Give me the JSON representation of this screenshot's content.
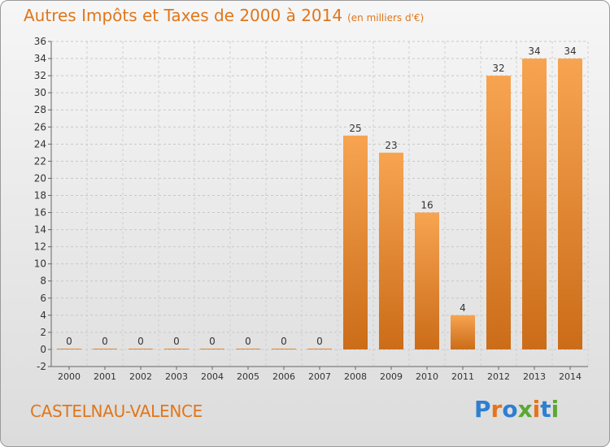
{
  "title": "Autres Impôts et Taxes de 2000 à 2014",
  "subtitle": "(en milliers d'€)",
  "place": "CASTELNAU-VALENCE",
  "logo": {
    "text": "Proxiti",
    "colors": [
      "#2e7fd0",
      "#e8731a",
      "#2e7fd0",
      "#5aa832",
      "#e8731a",
      "#2e7fd0",
      "#5aa832"
    ]
  },
  "colors": {
    "bar_light": "#f7a451",
    "bar_dark": "#cb6c18",
    "title": "#e0761b"
  },
  "chart_data": {
    "type": "bar",
    "categories": [
      "2000",
      "2001",
      "2002",
      "2003",
      "2004",
      "2005",
      "2006",
      "2007",
      "2008",
      "2009",
      "2010",
      "2011",
      "2012",
      "2013",
      "2014"
    ],
    "values": [
      0,
      0,
      0,
      0,
      0,
      0,
      0,
      0,
      25,
      23,
      16,
      4,
      32,
      34,
      34
    ],
    "ylim": [
      -2,
      36
    ],
    "yticks": [
      -2,
      0,
      2,
      4,
      6,
      8,
      10,
      12,
      14,
      16,
      18,
      20,
      22,
      24,
      26,
      28,
      30,
      32,
      34,
      36
    ],
    "grid": true
  }
}
